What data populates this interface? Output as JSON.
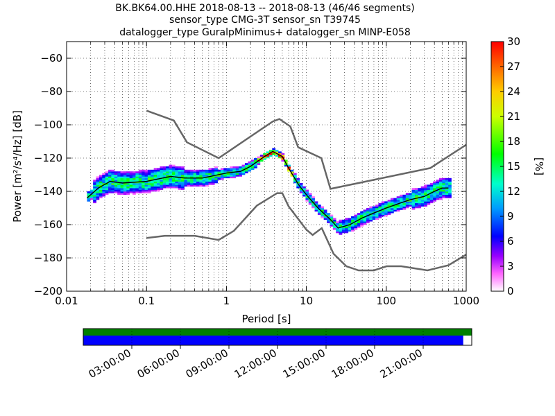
{
  "chart_data": {
    "type": "heatmap",
    "title_lines": [
      "BK.BK64.00.HHE   2018-08-13 -- 2018-08-13  (46/46 segments)",
      "sensor_type CMG-3T sensor_sn T39745",
      "datalogger_type GuralpMinimus+ datalogger_sn MINP-E058"
    ],
    "xlabel": "Period [s]",
    "ylabel": "Power [m²/s⁴/Hz] [dB]",
    "x_scale": "log",
    "xlim": [
      0.01,
      1000
    ],
    "ylim": [
      -200,
      -50
    ],
    "x_ticks": [
      {
        "value": 0.01,
        "label": "0.01"
      },
      {
        "value": 0.1,
        "label": "0.1"
      },
      {
        "value": 1,
        "label": "1"
      },
      {
        "value": 10,
        "label": "10"
      },
      {
        "value": 100,
        "label": "100"
      },
      {
        "value": 1000,
        "label": "1000"
      }
    ],
    "y_ticks": [
      {
        "value": -60,
        "label": "−60"
      },
      {
        "value": -80,
        "label": "−80"
      },
      {
        "value": -100,
        "label": "−100"
      },
      {
        "value": -120,
        "label": "−120"
      },
      {
        "value": -140,
        "label": "−140"
      },
      {
        "value": -160,
        "label": "−160"
      },
      {
        "value": -180,
        "label": "−180"
      },
      {
        "value": -200,
        "label": "−200"
      }
    ],
    "grid": "dotted",
    "colorbar": {
      "label": "[%]",
      "range": [
        0,
        30
      ],
      "ticks": [
        {
          "value": 0,
          "label": "0"
        },
        {
          "value": 3,
          "label": "3"
        },
        {
          "value": 6,
          "label": "6"
        },
        {
          "value": 9,
          "label": "9"
        },
        {
          "value": 12,
          "label": "12"
        },
        {
          "value": 15,
          "label": "15"
        },
        {
          "value": 18,
          "label": "18"
        },
        {
          "value": 21,
          "label": "21"
        },
        {
          "value": 24,
          "label": "24"
        },
        {
          "value": 27,
          "label": "27"
        },
        {
          "value": 30,
          "label": "30"
        }
      ]
    },
    "high_noise_model": [
      [
        0.1,
        -91.5
      ],
      [
        0.22,
        -97.4
      ],
      [
        0.32,
        -110.5
      ],
      [
        0.8,
        -120.0
      ],
      [
        3.8,
        -98.0
      ],
      [
        4.6,
        -96.5
      ],
      [
        6.3,
        -101.0
      ],
      [
        7.9,
        -113.5
      ],
      [
        15.4,
        -120.0
      ],
      [
        20.0,
        -138.5
      ],
      [
        354.8,
        -126.0
      ],
      [
        1000,
        -112.0
      ]
    ],
    "low_noise_model": [
      [
        0.1,
        -168.0
      ],
      [
        0.17,
        -166.7
      ],
      [
        0.4,
        -166.7
      ],
      [
        0.8,
        -169.2
      ],
      [
        1.24,
        -163.7
      ],
      [
        2.4,
        -148.6
      ],
      [
        4.3,
        -141.1
      ],
      [
        5.0,
        -141.1
      ],
      [
        6.0,
        -149.0
      ],
      [
        10.0,
        -163.0
      ],
      [
        12.0,
        -166.2
      ],
      [
        15.6,
        -162.1
      ],
      [
        21.9,
        -177.5
      ],
      [
        31.6,
        -185.0
      ],
      [
        45.0,
        -187.5
      ],
      [
        70.0,
        -187.5
      ],
      [
        101.0,
        -185.0
      ],
      [
        154.0,
        -185.0
      ],
      [
        328.0,
        -187.5
      ],
      [
        600.0,
        -184.4
      ],
      [
        1000,
        -178.0
      ]
    ],
    "mode_curve": [
      [
        0.018,
        -144.0
      ],
      [
        0.025,
        -138.0
      ],
      [
        0.035,
        -134.0
      ],
      [
        0.05,
        -135.0
      ],
      [
        0.1,
        -134.0
      ],
      [
        0.2,
        -131.0
      ],
      [
        0.3,
        -132.0
      ],
      [
        0.5,
        -132.0
      ],
      [
        1.0,
        -129.0
      ],
      [
        1.5,
        -128.0
      ],
      [
        2.0,
        -125.0
      ],
      [
        3.0,
        -119.0
      ],
      [
        3.8,
        -116.0
      ],
      [
        5.0,
        -119.0
      ],
      [
        6.0,
        -126.0
      ],
      [
        8.0,
        -136.0
      ],
      [
        10.0,
        -142.0
      ],
      [
        14.0,
        -150.0
      ],
      [
        20.0,
        -157.0
      ],
      [
        25.0,
        -162.0
      ],
      [
        35.0,
        -160.0
      ],
      [
        50.0,
        -156.0
      ],
      [
        70.0,
        -153.0
      ],
      [
        100.0,
        -150.0
      ],
      [
        150.0,
        -147.0
      ],
      [
        200.0,
        -145.0
      ],
      [
        300.0,
        -143.0
      ],
      [
        400.0,
        -140.0
      ],
      [
        500.0,
        -138.0
      ],
      [
        600.0,
        -138.0
      ]
    ]
  },
  "timeline": {
    "ticks": [
      "03:00:00",
      "06:00:00",
      "09:00:00",
      "12:00:00",
      "15:00:00",
      "18:00:00",
      "21:00:00"
    ],
    "tick_hours": [
      3,
      6,
      9,
      12,
      15,
      18,
      21
    ],
    "span_hours": 24,
    "coverage_top_color": "#008000",
    "coverage_bottom_color": "#0000ff",
    "bottom_fraction": 0.978
  }
}
